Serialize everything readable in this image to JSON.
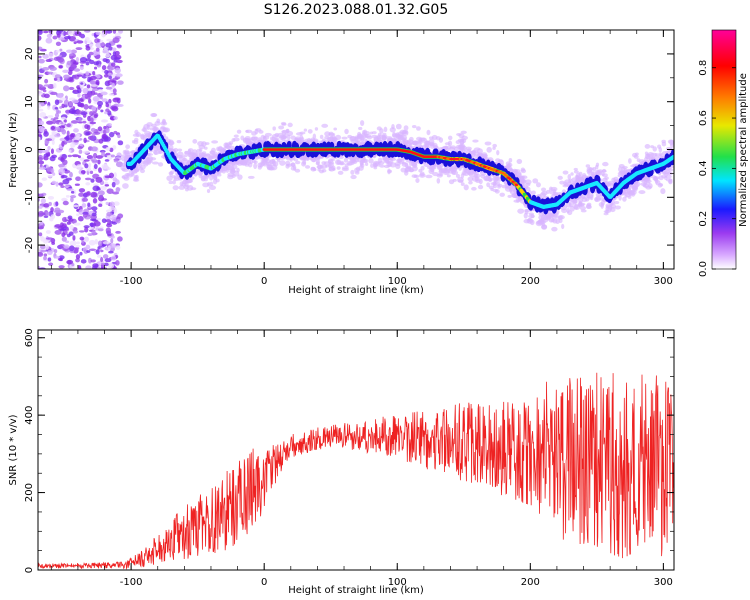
{
  "title": "S126.2023.088.01.32.G05",
  "chart_data": [
    {
      "type": "heatmap",
      "title": "S126.2023.088.01.32.G05",
      "xlabel": "Height of straight line (km)",
      "ylabel": "Frequency (Hz)",
      "xlim": [
        -170,
        308
      ],
      "ylim": [
        -25,
        25
      ],
      "xticks": [
        -100,
        0,
        100,
        200,
        300
      ],
      "yticks": [
        -20,
        -10,
        0,
        10,
        20
      ],
      "colorbar": {
        "label": "Normalized spectral amplitude",
        "range": [
          0,
          0.95
        ],
        "ticks": [
          0.0,
          0.2,
          0.4,
          0.6,
          0.8
        ],
        "colors": [
          "#ffffff",
          "#9b3bf0",
          "#1a1aff",
          "#00e5ff",
          "#22e04a",
          "#e8e800",
          "#ff7a00",
          "#ff0000",
          "#ff0099"
        ]
      },
      "ridge_x": [
        -100,
        -90,
        -80,
        -70,
        -60,
        -50,
        -40,
        -30,
        -20,
        -10,
        0,
        20,
        40,
        60,
        80,
        100,
        110,
        120,
        130,
        140,
        150,
        160,
        170,
        180,
        190,
        200,
        210,
        220,
        230,
        240,
        250,
        260,
        270,
        280,
        290,
        300,
        308
      ],
      "ridge_freq": [
        -3,
        0,
        3,
        -2,
        -5,
        -3,
        -4,
        -2,
        -1,
        -0.5,
        0,
        0,
        0,
        0,
        0,
        0,
        -0.5,
        -1.5,
        -1.5,
        -2,
        -2,
        -3,
        -4,
        -5,
        -7.5,
        -11,
        -12,
        -11.5,
        -9,
        -8,
        -7,
        -10,
        -7,
        -5,
        -4,
        -3,
        -1.5
      ]
    },
    {
      "type": "line",
      "xlabel": "Height of straight line (km)",
      "ylabel": "SNR (10 * v/v)",
      "xlim": [
        -170,
        308
      ],
      "ylim": [
        0,
        620
      ],
      "xticks": [
        -100,
        0,
        100,
        200,
        300
      ],
      "yticks": [
        0,
        200,
        400,
        600
      ],
      "color": "#ee2222",
      "envelope_x": [
        -170,
        -110,
        -100,
        -90,
        -80,
        -70,
        -60,
        -50,
        -40,
        -30,
        -20,
        -10,
        0,
        10,
        20,
        40,
        60,
        80,
        100,
        120,
        140,
        160,
        180,
        200,
        215,
        230,
        250,
        270,
        290,
        308
      ],
      "envelope_mean": [
        10,
        12,
        18,
        30,
        55,
        80,
        95,
        110,
        130,
        150,
        175,
        205,
        230,
        280,
        320,
        340,
        345,
        345,
        345,
        340,
        335,
        325,
        310,
        300,
        300,
        280,
        280,
        270,
        270,
        260
      ],
      "envelope_spread": [
        6,
        8,
        14,
        25,
        40,
        55,
        70,
        80,
        90,
        100,
        110,
        110,
        80,
        50,
        30,
        30,
        35,
        45,
        60,
        80,
        95,
        110,
        125,
        140,
        200,
        220,
        230,
        240,
        240,
        230
      ]
    }
  ]
}
